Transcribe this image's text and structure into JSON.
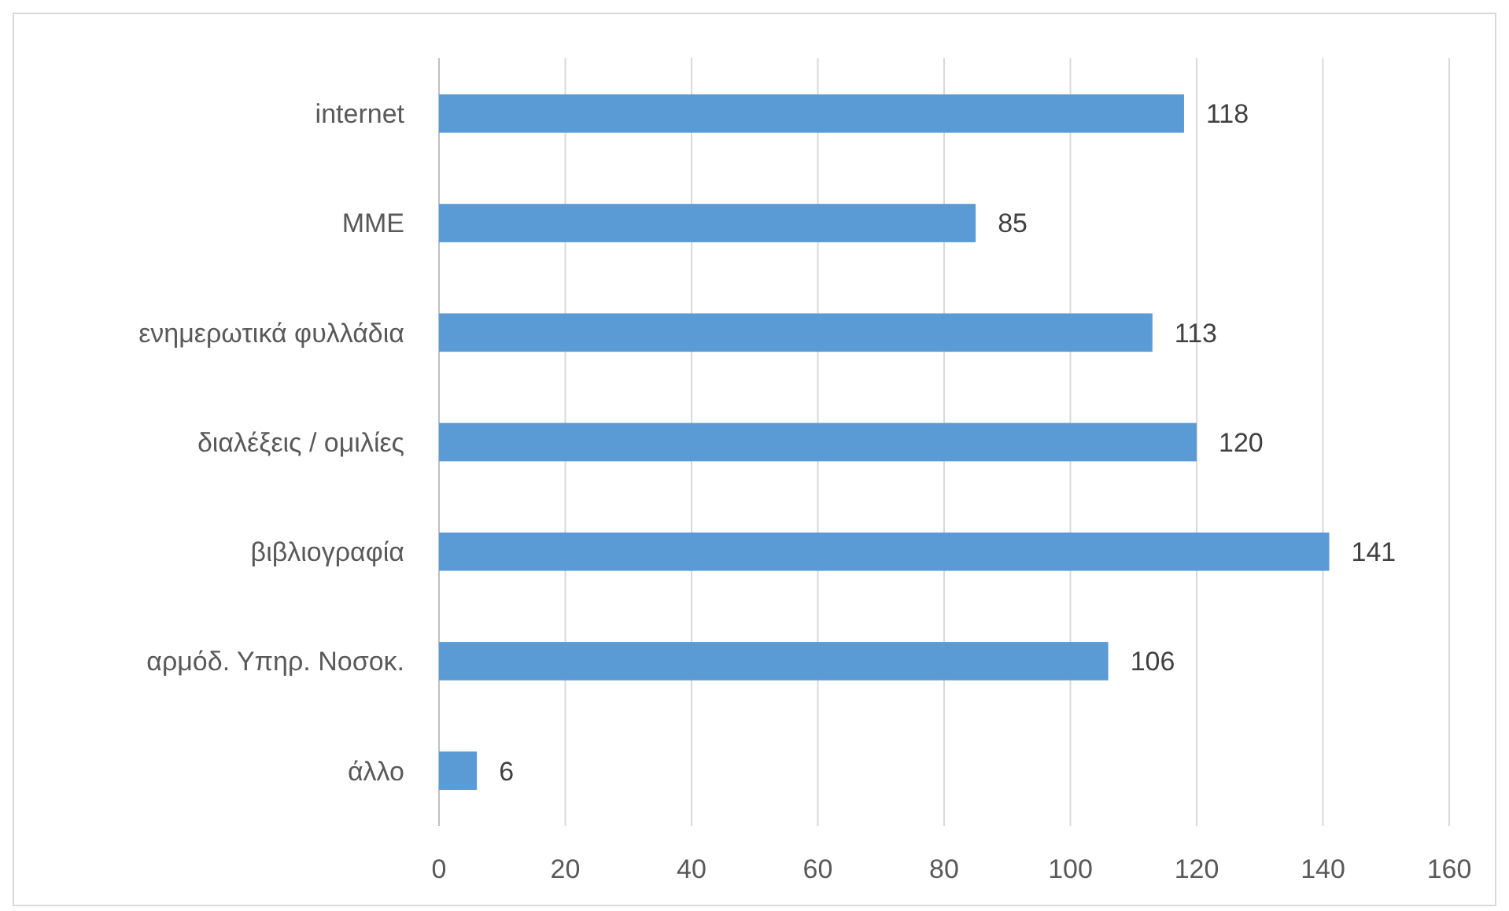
{
  "chart_data": {
    "type": "bar",
    "orientation": "horizontal",
    "categories": [
      "internet",
      "MME",
      "ενημερωτικά φυλλάδια",
      "διαλέξεις / ομιλίες",
      "βιβλιογραφία",
      "αρμόδ. Υπηρ. Νοσοκ.",
      "άλλο"
    ],
    "values": [
      118,
      85,
      113,
      120,
      141,
      106,
      6
    ],
    "color": "#5b9bd5",
    "xlim": [
      0,
      160
    ],
    "xticks": [
      0,
      20,
      40,
      60,
      80,
      100,
      120,
      140,
      160
    ],
    "grid": "x",
    "data_labels": true
  }
}
